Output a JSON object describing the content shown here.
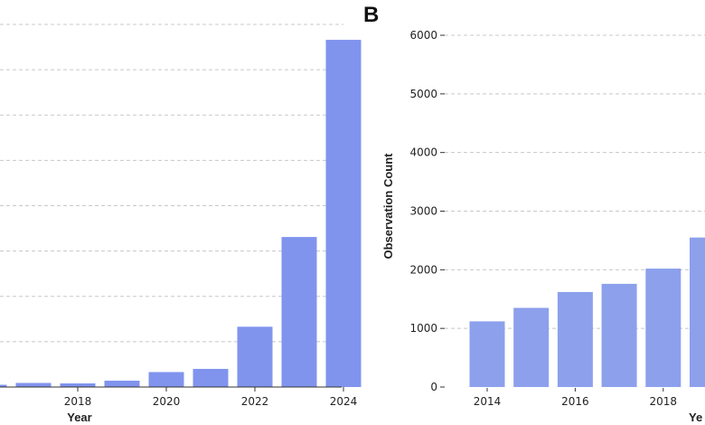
{
  "chart_data": [
    {
      "type": "bar",
      "panel_label": "",
      "categories": [
        "2016",
        "2017",
        "2018",
        "2019",
        "2020",
        "2021",
        "2022",
        "2023",
        "2024"
      ],
      "values": [
        0.05,
        0.09,
        0.08,
        0.14,
        0.33,
        0.4,
        1.33,
        3.31,
        7.66
      ],
      "x_tick_labels": [
        "2018",
        "2020",
        "2022",
        "2024"
      ],
      "y_tick_labels": [],
      "xlabel": "Year",
      "ylabel": "",
      "ylim": [
        0,
        8
      ],
      "grid": "horizontal dashed",
      "color": "#8094ee"
    },
    {
      "type": "bar",
      "panel_label": "B",
      "categories": [
        "2014",
        "2015",
        "2016",
        "2017",
        "2018",
        "2019"
      ],
      "values": [
        1120,
        1350,
        1620,
        1760,
        2020,
        2550
      ],
      "x_tick_labels": [
        "2014",
        "2016",
        "2018"
      ],
      "y_tick_labels": [
        "0",
        "1000",
        "2000",
        "3000",
        "4000",
        "5000",
        "6000"
      ],
      "xlabel": "Ye",
      "ylabel": "Observation Count",
      "ylim": [
        0,
        6000
      ],
      "grid": "horizontal dashed",
      "color": "#8ca0ec"
    }
  ]
}
